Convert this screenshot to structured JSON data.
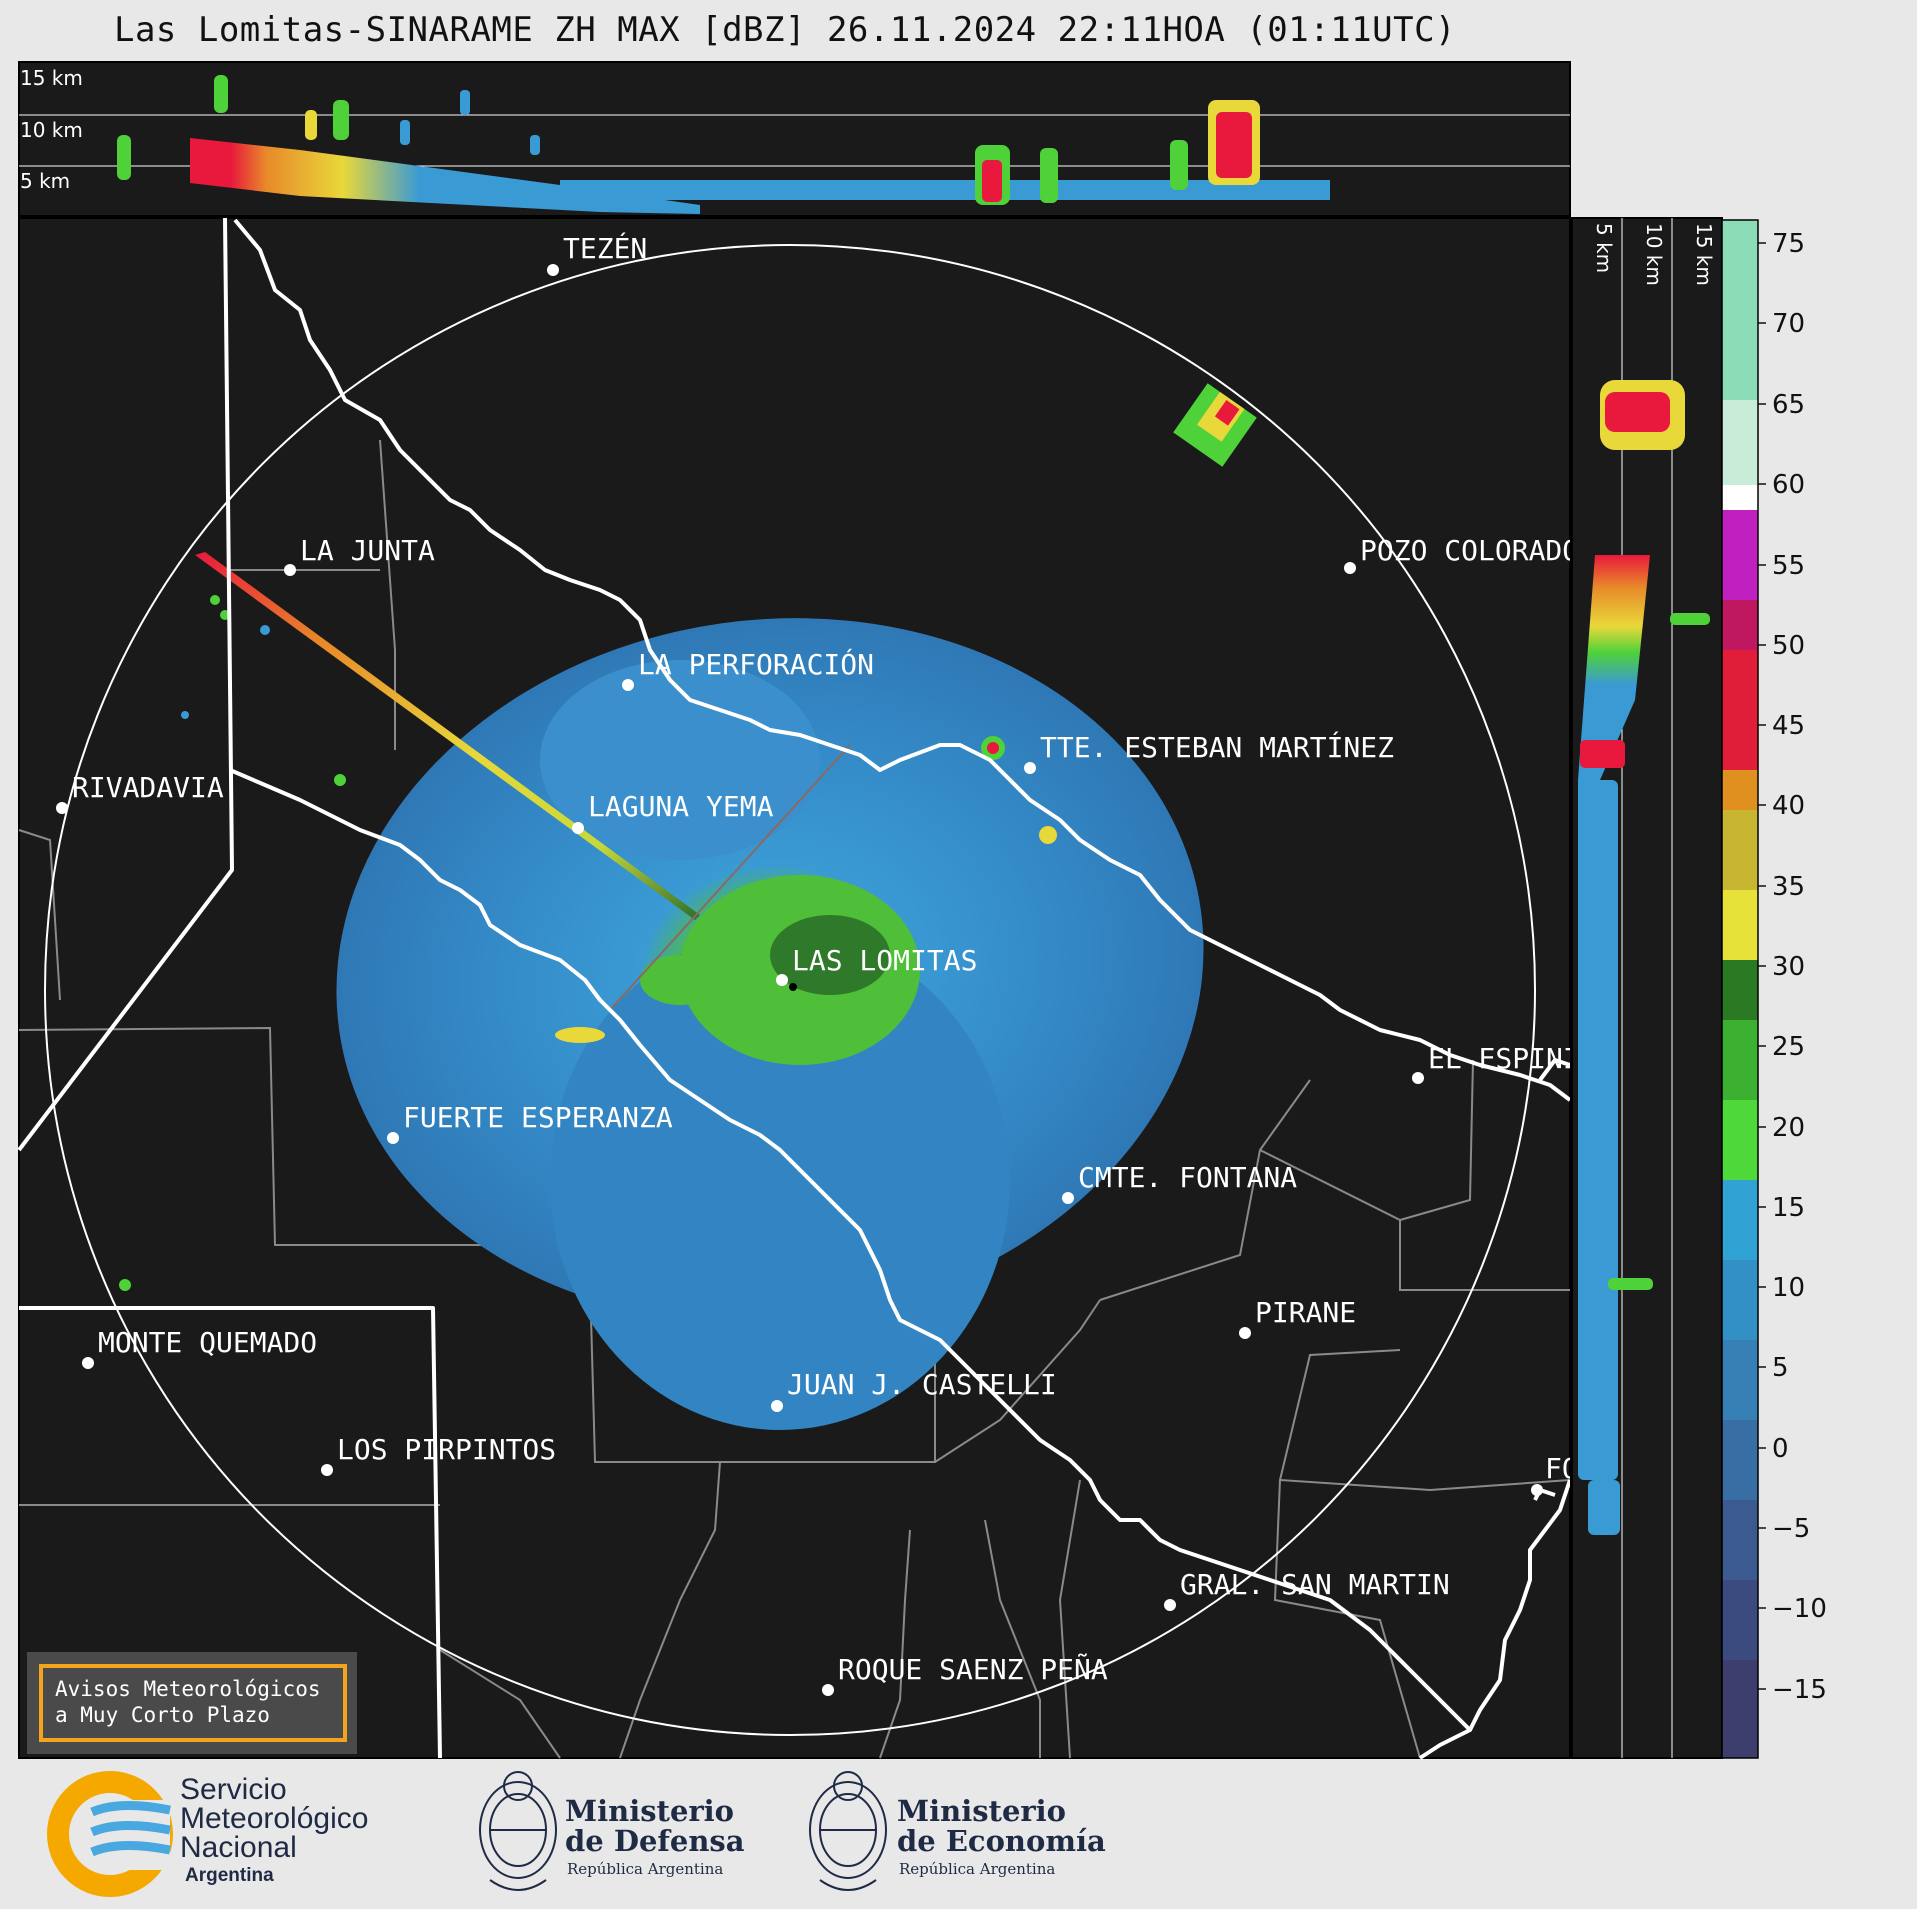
{
  "title": "Las Lomitas-SINARAME ZH MAX [dBZ] 26.11.2024 22:11HOA (01:11UTC)",
  "top_panel": {
    "altitude_labels": [
      "15 km",
      "10 km",
      "5 km"
    ]
  },
  "side_panel": {
    "altitude_labels": [
      "5 km",
      "10 km",
      "15 km"
    ]
  },
  "places": [
    {
      "name": "TEZÉN"
    },
    {
      "name": "LA JUNTA"
    },
    {
      "name": "POZO COLORADO"
    },
    {
      "name": "LA PERFORACIÓN"
    },
    {
      "name": "TTE. ESTEBAN MARTÍNEZ"
    },
    {
      "name": "RIVADAVIA"
    },
    {
      "name": "LAGUNA YEMA"
    },
    {
      "name": "LAS LOMITAS"
    },
    {
      "name": "EL ESPINILLO"
    },
    {
      "name": "FUERTE ESPERANZA"
    },
    {
      "name": "CMTE. FONTANA"
    },
    {
      "name": "PIRANE"
    },
    {
      "name": "MONTE QUEMADO"
    },
    {
      "name": "JUAN J. CASTELLI"
    },
    {
      "name": "LOS PIRPINTOS"
    },
    {
      "name": "GRAL. SAN MARTIN"
    },
    {
      "name": "ROQUE SAENZ PEÑA"
    },
    {
      "name": "FORMOSA"
    }
  ],
  "colorbar": {
    "unit": "dBZ",
    "ticks": [
      "75",
      "70",
      "65",
      "60",
      "55",
      "50",
      "45",
      "40",
      "35",
      "30",
      "25",
      "20",
      "15",
      "10",
      "5",
      "0",
      "−5",
      "−10",
      "−15"
    ]
  },
  "avisos": {
    "line1": "Avisos Meteorológicos",
    "line2": "a Muy Corto Plazo"
  },
  "footer": {
    "smn_line1": "Servicio",
    "smn_line2": "Meteorológico",
    "smn_line3": "Nacional",
    "smn_country": "Argentina",
    "defensa_line1": "Ministerio",
    "defensa_line2": "de Defensa",
    "defensa_country": "República Argentina",
    "economia_line1": "Ministerio",
    "economia_line2": "de Economía",
    "economia_country": "República Argentina"
  },
  "colors": {
    "background": "#1a1a1a",
    "page": "#e8e8e8",
    "echo_weak": "#3a8fcc",
    "echo_moderate": "#4fd13a",
    "echo_strong": "#e8e23a",
    "echo_intense": "#e8193c",
    "alert_border": "#f2a41c"
  }
}
